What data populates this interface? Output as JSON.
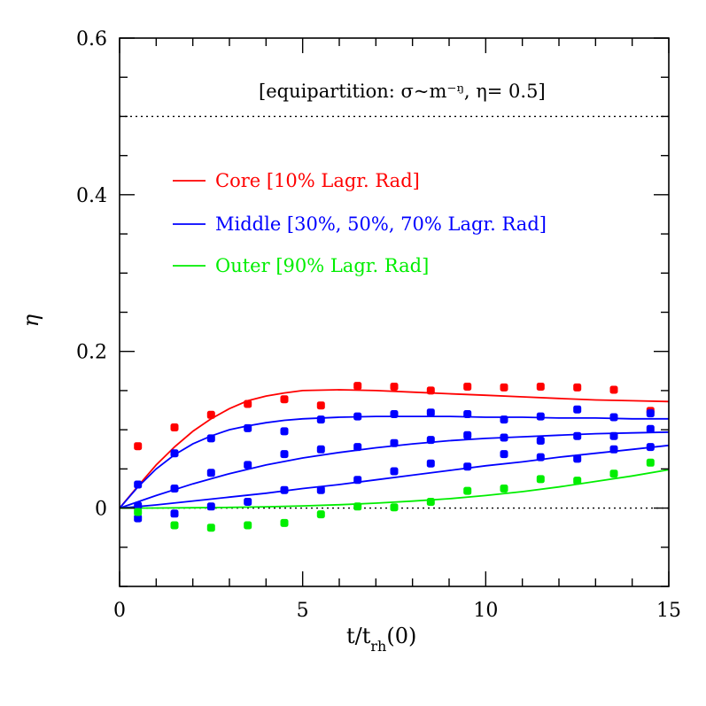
{
  "chart_data": {
    "type": "scatter",
    "xlabel": {
      "main": "t/t",
      "sub": "rh",
      "tail": "(0)"
    },
    "ylabel": "η",
    "xlim": [
      0,
      15
    ],
    "ylim": [
      -0.1,
      0.6
    ],
    "x_ticks": [
      0,
      5,
      10,
      15
    ],
    "y_ticks": [
      0,
      0.2,
      0.4,
      0.6
    ],
    "x_tick_labels": [
      "0",
      "5",
      "10",
      "15"
    ],
    "y_tick_labels": [
      "0",
      "0.2",
      "0.4",
      "0.6"
    ],
    "x_minor_step": 1,
    "y_minor_step": 0.05,
    "grid": false,
    "reference_lines": [
      {
        "y": 0.5,
        "style": "dotted",
        "color": "#000000"
      },
      {
        "y": 0.0,
        "style": "dotted",
        "color": "#000000"
      }
    ],
    "annotation": "[equipartition: σ~m⁻ᵑ, η= 0.5]",
    "legend": {
      "position": "upper-left",
      "entries": [
        {
          "label": "Core [10% Lagr. Rad]",
          "color": "#ff0000"
        },
        {
          "label": "Middle [30%, 50%, 70% Lagr. Rad]",
          "color": "#0000ff"
        },
        {
          "label": "Outer [90% Lagr. Rad]",
          "color": "#00ee00"
        }
      ]
    },
    "series": [
      {
        "group": "core",
        "color": "#ff0000",
        "marker": "square",
        "x": [
          0.5,
          1.5,
          2.5,
          3.5,
          4.5,
          5.5,
          6.5,
          7.5,
          8.5,
          9.5,
          10.5,
          11.5,
          12.5,
          13.5,
          14.5
        ],
        "y": [
          0.079,
          0.103,
          0.119,
          0.133,
          0.139,
          0.131,
          0.156,
          0.155,
          0.15,
          0.155,
          0.154,
          0.155,
          0.154,
          0.151,
          0.124
        ],
        "fit_x": [
          0,
          0.5,
          1,
          1.5,
          2,
          2.5,
          3,
          3.5,
          4,
          4.5,
          5,
          6,
          7,
          8,
          9,
          10,
          11,
          12,
          13,
          14,
          15
        ],
        "fit_y": [
          0,
          0.028,
          0.055,
          0.078,
          0.098,
          0.114,
          0.127,
          0.137,
          0.143,
          0.147,
          0.15,
          0.151,
          0.15,
          0.148,
          0.146,
          0.144,
          0.142,
          0.14,
          0.138,
          0.137,
          0.136
        ]
      },
      {
        "group": "middle-30",
        "color": "#0000ff",
        "marker": "square",
        "x": [
          0.5,
          1.5,
          2.5,
          3.5,
          4.5,
          5.5,
          6.5,
          7.5,
          8.5,
          9.5,
          10.5,
          11.5,
          12.5,
          13.5,
          14.5
        ],
        "y": [
          0.03,
          0.07,
          0.089,
          0.102,
          0.098,
          0.113,
          0.117,
          0.12,
          0.122,
          0.12,
          0.113,
          0.117,
          0.126,
          0.116,
          0.121
        ],
        "fit_x": [
          0,
          0.5,
          1,
          1.5,
          2,
          2.5,
          3,
          3.5,
          4,
          4.5,
          5,
          6,
          7,
          8,
          9,
          10,
          11,
          12,
          13,
          14,
          15
        ],
        "fit_y": [
          0,
          0.027,
          0.05,
          0.068,
          0.082,
          0.092,
          0.1,
          0.105,
          0.109,
          0.112,
          0.114,
          0.116,
          0.117,
          0.117,
          0.117,
          0.116,
          0.116,
          0.115,
          0.115,
          0.114,
          0.114
        ]
      },
      {
        "group": "middle-50",
        "color": "#0000ff",
        "marker": "square",
        "x": [
          0.5,
          1.5,
          2.5,
          3.5,
          4.5,
          5.5,
          6.5,
          7.5,
          8.5,
          9.5,
          10.5,
          11.5,
          12.5,
          13.5,
          14.5
        ],
        "y": [
          0.003,
          0.025,
          0.045,
          0.055,
          0.069,
          0.075,
          0.078,
          0.083,
          0.087,
          0.093,
          0.09,
          0.086,
          0.092,
          0.092,
          0.101
        ],
        "fit_x": [
          0,
          1,
          2,
          3,
          4,
          5,
          6,
          7,
          8,
          9,
          10,
          11,
          12,
          13,
          14,
          15
        ],
        "fit_y": [
          0,
          0.016,
          0.031,
          0.044,
          0.055,
          0.064,
          0.071,
          0.077,
          0.082,
          0.086,
          0.089,
          0.091,
          0.093,
          0.095,
          0.096,
          0.097
        ]
      },
      {
        "group": "middle-70",
        "color": "#0000ff",
        "marker": "square",
        "x": [
          0.5,
          1.5,
          2.5,
          3.5,
          4.5,
          5.5,
          6.5,
          7.5,
          8.5,
          9.5,
          10.5,
          11.5,
          12.5,
          13.5,
          14.5
        ],
        "y": [
          -0.013,
          -0.007,
          0.002,
          0.008,
          0.023,
          0.023,
          0.036,
          0.047,
          0.057,
          0.053,
          0.069,
          0.065,
          0.063,
          0.075,
          0.078
        ],
        "fit_x": [
          0,
          1,
          2,
          3,
          4,
          5,
          6,
          7,
          8,
          9,
          10,
          11,
          12,
          13,
          14,
          15
        ],
        "fit_y": [
          0,
          0.004,
          0.009,
          0.014,
          0.019,
          0.025,
          0.03,
          0.036,
          0.042,
          0.048,
          0.054,
          0.059,
          0.065,
          0.07,
          0.075,
          0.08
        ]
      },
      {
        "group": "outer",
        "color": "#00ee00",
        "marker": "square",
        "x": [
          0.5,
          1.5,
          2.5,
          3.5,
          4.5,
          5.5,
          6.5,
          7.5,
          8.5,
          9.5,
          10.5,
          11.5,
          12.5,
          13.5,
          14.5
        ],
        "y": [
          -0.005,
          -0.022,
          -0.025,
          -0.022,
          -0.019,
          -0.008,
          0.002,
          0.001,
          0.008,
          0.022,
          0.025,
          0.037,
          0.035,
          0.044,
          0.058
        ],
        "fit_x": [
          0,
          1,
          2,
          3,
          4,
          5,
          6,
          7,
          8,
          9,
          10,
          11,
          12,
          13,
          14,
          15
        ],
        "fit_y": [
          0,
          0.0001,
          0.0004,
          0.0009,
          0.0017,
          0.0028,
          0.0043,
          0.0063,
          0.0089,
          0.012,
          0.016,
          0.021,
          0.027,
          0.034,
          0.041,
          0.049
        ]
      }
    ]
  }
}
